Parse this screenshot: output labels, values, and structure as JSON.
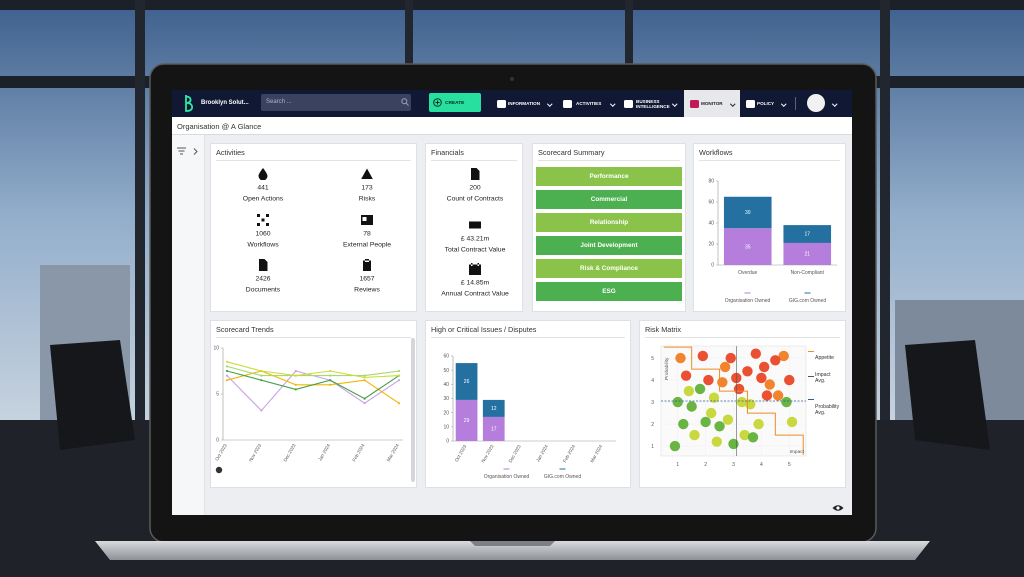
{
  "nav": {
    "brand": "Brooklyn Solut...",
    "search": "Search ...",
    "create": "CREATE",
    "items": [
      "INFORMATION",
      "ACTIVITIES",
      "BUSINESS INTELLIGENCE",
      "MONITOR",
      "POLICY"
    ]
  },
  "page_title": "Organisation @ A Glance",
  "activities": {
    "title": "Activities",
    "items": [
      {
        "value": 441,
        "label": "Open Actions"
      },
      {
        "value": 173,
        "label": "Risks"
      },
      {
        "value": 1060,
        "label": "Workflows"
      },
      {
        "value": 78,
        "label": "External People"
      },
      {
        "value": 2426,
        "label": "Documents"
      },
      {
        "value": 1657,
        "label": "Reviews"
      }
    ]
  },
  "financials": {
    "title": "Financials",
    "items": [
      {
        "value": 200,
        "label": "Count of Contracts"
      },
      {
        "value": "£ 43.21m",
        "label": "Total Contract Value"
      },
      {
        "value": "£ 14.85m",
        "label": "Annual Contract Value"
      }
    ]
  },
  "scorecard_summary": {
    "title": "Scorecard Summary",
    "items": [
      "Performance",
      "Commercial",
      "Relationship",
      "Joint Development",
      "Risk & Compliance",
      "ESG"
    ]
  },
  "chart_data": [
    {
      "type": "bar",
      "stacked": true,
      "title": "Workflows",
      "categories": [
        "Overdue",
        "Non-Compliant"
      ],
      "series": [
        {
          "name": "Organisation Owned",
          "color": "#b57edc",
          "values": [
            35,
            21
          ]
        },
        {
          "name": "GIG.com Owned",
          "color": "#2470a0",
          "values": [
            30,
            17
          ]
        }
      ],
      "ylim": [
        0,
        80
      ],
      "yticks": [
        0,
        20,
        40,
        60,
        80
      ]
    },
    {
      "type": "line",
      "title": "Scorecard Trends",
      "categories": [
        "Oct 2023",
        "Nov 2023",
        "Dec 2023",
        "Jan 2024",
        "Feb 2024",
        "Mar 2024"
      ],
      "series": [
        {
          "color": "#c8a2e8",
          "values": [
            7,
            3.2,
            7.5,
            6.5,
            4,
            6.5
          ]
        },
        {
          "color": "#f2b705",
          "values": [
            6.5,
            7.5,
            6,
            6,
            6.5,
            4
          ]
        },
        {
          "color": "#a5d86e",
          "values": [
            8,
            7,
            7,
            7,
            7,
            7.5
          ]
        },
        {
          "color": "#43a047",
          "values": [
            7.5,
            6.5,
            5.5,
            6.5,
            4.5,
            7
          ]
        },
        {
          "color": "#cddc39",
          "values": [
            8.5,
            7.5,
            7,
            7.5,
            6.8,
            7
          ]
        }
      ],
      "ylim": [
        0,
        10
      ],
      "yticks": [
        0,
        5,
        10
      ]
    },
    {
      "type": "bar",
      "stacked": true,
      "title": "High or Critical Issues / Disputes",
      "categories": [
        "Oct 2023",
        "Nov 2023",
        "Dec 2023",
        "Jan 2024",
        "Feb 2024",
        "Mar 2024"
      ],
      "series": [
        {
          "name": "Organisation Owned",
          "color": "#b57edc",
          "values": [
            29,
            17,
            null,
            null,
            null,
            null
          ]
        },
        {
          "name": "GIG.com Owned",
          "color": "#2470a0",
          "values": [
            26,
            12,
            null,
            null,
            null,
            null
          ]
        }
      ],
      "ylim": [
        0,
        60
      ],
      "yticks": [
        0,
        10,
        20,
        30,
        40,
        50,
        60
      ]
    },
    {
      "type": "scatter",
      "title": "Risk Matrix",
      "x_label": "Impact",
      "y_label": "Probability",
      "x": [
        1.1,
        1.3,
        1.0,
        1.2,
        0.9,
        1.4,
        1.9,
        2.1,
        2.3,
        2.0,
        2.4,
        1.8,
        2.2,
        2.9,
        3.1,
        3.3,
        2.8,
        3.0,
        3.2,
        2.7,
        3.4,
        3.8,
        4.0,
        4.2,
        3.9,
        4.1,
        4.3,
        3.7,
        4.8,
        5.0,
        4.9,
        5.1,
        1.5,
        2.6,
        3.6,
        4.5,
        2.5,
        3.5,
        1.6,
        4.6
      ],
      "y": [
        5.0,
        4.2,
        3.0,
        2.0,
        1.0,
        3.5,
        5.1,
        4.0,
        3.2,
        2.1,
        1.2,
        3.6,
        2.5,
        5.0,
        4.1,
        3.0,
        2.2,
        1.1,
        3.6,
        4.6,
        1.5,
        5.2,
        4.1,
        3.3,
        2.0,
        4.6,
        3.8,
        1.4,
        5.1,
        4.0,
        3.0,
        2.1,
        2.8,
        3.9,
        2.9,
        4.9,
        1.9,
        4.4,
        1.5,
        3.3
      ],
      "colors": [
        "#f07b1c",
        "#e8411f",
        "#5cae33",
        "#5cae33",
        "#5cae33",
        "#c6d52f",
        "#e8411f",
        "#e8411f",
        "#c6d52f",
        "#5cae33",
        "#c6d52f",
        "#5cae33",
        "#c6d52f",
        "#e8411f",
        "#e8411f",
        "#c6d52f",
        "#c6d52f",
        "#5cae33",
        "#e8411f",
        "#f07b1c",
        "#c6d52f",
        "#e8411f",
        "#e8411f",
        "#e8411f",
        "#c6d52f",
        "#e8411f",
        "#f07b1c",
        "#5cae33",
        "#f07b1c",
        "#e8411f",
        "#5cae33",
        "#c6d52f",
        "#5cae33",
        "#f07b1c",
        "#c6d52f",
        "#e8411f",
        "#5cae33",
        "#e8411f",
        "#c6d52f",
        "#f07b1c"
      ],
      "xlim": [
        0.4,
        5.6
      ],
      "ylim": [
        0.55,
        5.55
      ],
      "xticks": [
        1,
        2,
        3,
        4,
        5
      ],
      "yticks": [
        1,
        2,
        3,
        4,
        5
      ],
      "appetite": {
        "name": "Appetite",
        "color": "#f08a24",
        "x": [
          0.5,
          1.5,
          1.5,
          2.5,
          2.5,
          3.5,
          3.5,
          4.5,
          4.5,
          5.5,
          5.5
        ],
        "y": [
          5.5,
          5.5,
          4.5,
          4.5,
          3.5,
          3.5,
          2.5,
          2.5,
          1.5,
          1.5,
          0.6
        ]
      },
      "impact_avg": {
        "name": "Impact Avg.",
        "color": "#555555",
        "value": 3.1
      },
      "probability_avg": {
        "name": "Probability Avg.",
        "color": "#2f5d9e",
        "value": 3.05
      }
    }
  ]
}
